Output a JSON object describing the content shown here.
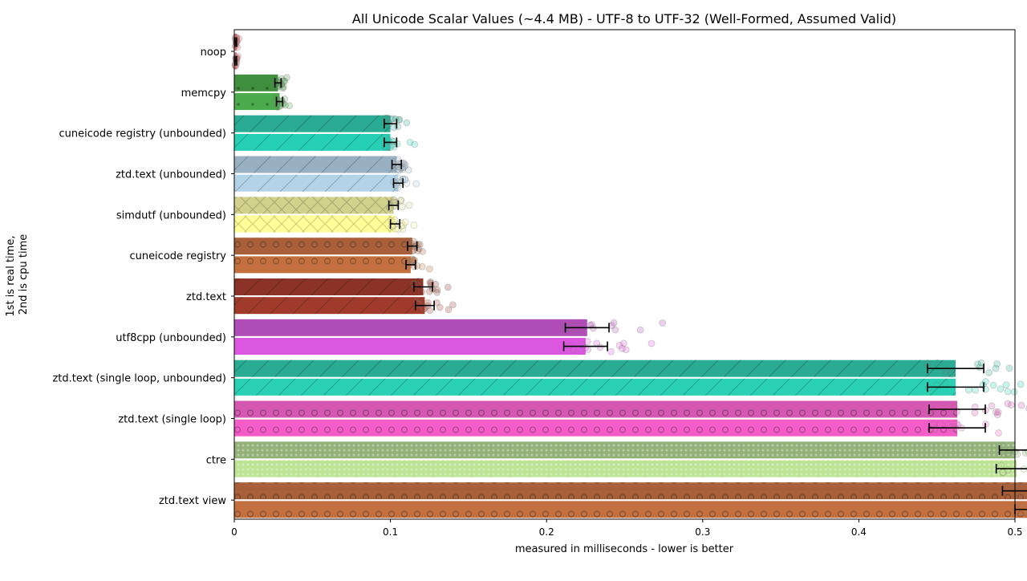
{
  "chart_data": {
    "type": "bar",
    "orientation": "horizontal",
    "title": "All Unicode Scalar Values (~4.4 MB) - UTF-8 to UTF-32 (Well-Formed, Assumed Valid)",
    "xlabel": "measured in milliseconds - lower is better",
    "ylabel_lines": [
      "1st is real time,",
      "2nd is cpu time"
    ],
    "xlim": [
      0,
      0.6
    ],
    "xticks": [
      0,
      0.1,
      0.2,
      0.3,
      0.4,
      0.5
    ],
    "xtick_labels": [
      "0",
      "0.1",
      "0.2",
      "0.3",
      "0.4",
      "0.5"
    ],
    "grid": false,
    "legend": "none",
    "series": [
      {
        "categories": [
          "noop",
          "memcpy",
          "cuneicode registry (unbounded)",
          "ztd.text (unbounded)",
          "simdutf (unbounded)",
          "cuneicode registry",
          "ztd.text",
          "utf8cpp (unbounded)",
          "ztd.text (single loop, unbounded)",
          "ztd.text (single loop)",
          "ctre",
          "ztd.text view"
        ],
        "real_time_ms": [
          0.001,
          0.028,
          0.1,
          0.104,
          0.102,
          0.114,
          0.121,
          0.226,
          0.462,
          0.463,
          0.5,
          0.51
        ],
        "real_time_err_ms": [
          0.0005,
          0.002,
          0.004,
          0.003,
          0.003,
          0.003,
          0.006,
          0.014,
          0.018,
          0.018,
          0.01,
          0.018
        ],
        "cpu_time_ms": [
          0.001,
          0.029,
          0.1,
          0.105,
          0.103,
          0.113,
          0.122,
          0.225,
          0.462,
          0.463,
          0.501,
          0.51
        ],
        "cpu_time_err_ms": [
          0.0005,
          0.002,
          0.004,
          0.003,
          0.003,
          0.003,
          0.006,
          0.014,
          0.018,
          0.018,
          0.013,
          0.01
        ]
      }
    ],
    "bar_colors_real": [
      "#d96a6a",
      "#3f8f3f",
      "#2aab93",
      "#98b0c2",
      "#d2d28c",
      "#a8603a",
      "#8a3326",
      "#b04cb5",
      "#2aab93",
      "#d457b0",
      "#93b27a",
      "#a8603a"
    ],
    "bar_colors_cpu": [
      "#e07a7a",
      "#4cab4c",
      "#26d0b4",
      "#b3d3e8",
      "#ffff99",
      "#c27040",
      "#a03b2c",
      "#dc57e0",
      "#2ad0b4",
      "#f45cc8",
      "#bde394",
      "#c27040"
    ],
    "hatches": [
      "none",
      "dots",
      "diagonal",
      "diagonal",
      "cross",
      "circles",
      "diagonal",
      "none",
      "diagonal",
      "circles",
      "dense-dots",
      "circles"
    ]
  }
}
